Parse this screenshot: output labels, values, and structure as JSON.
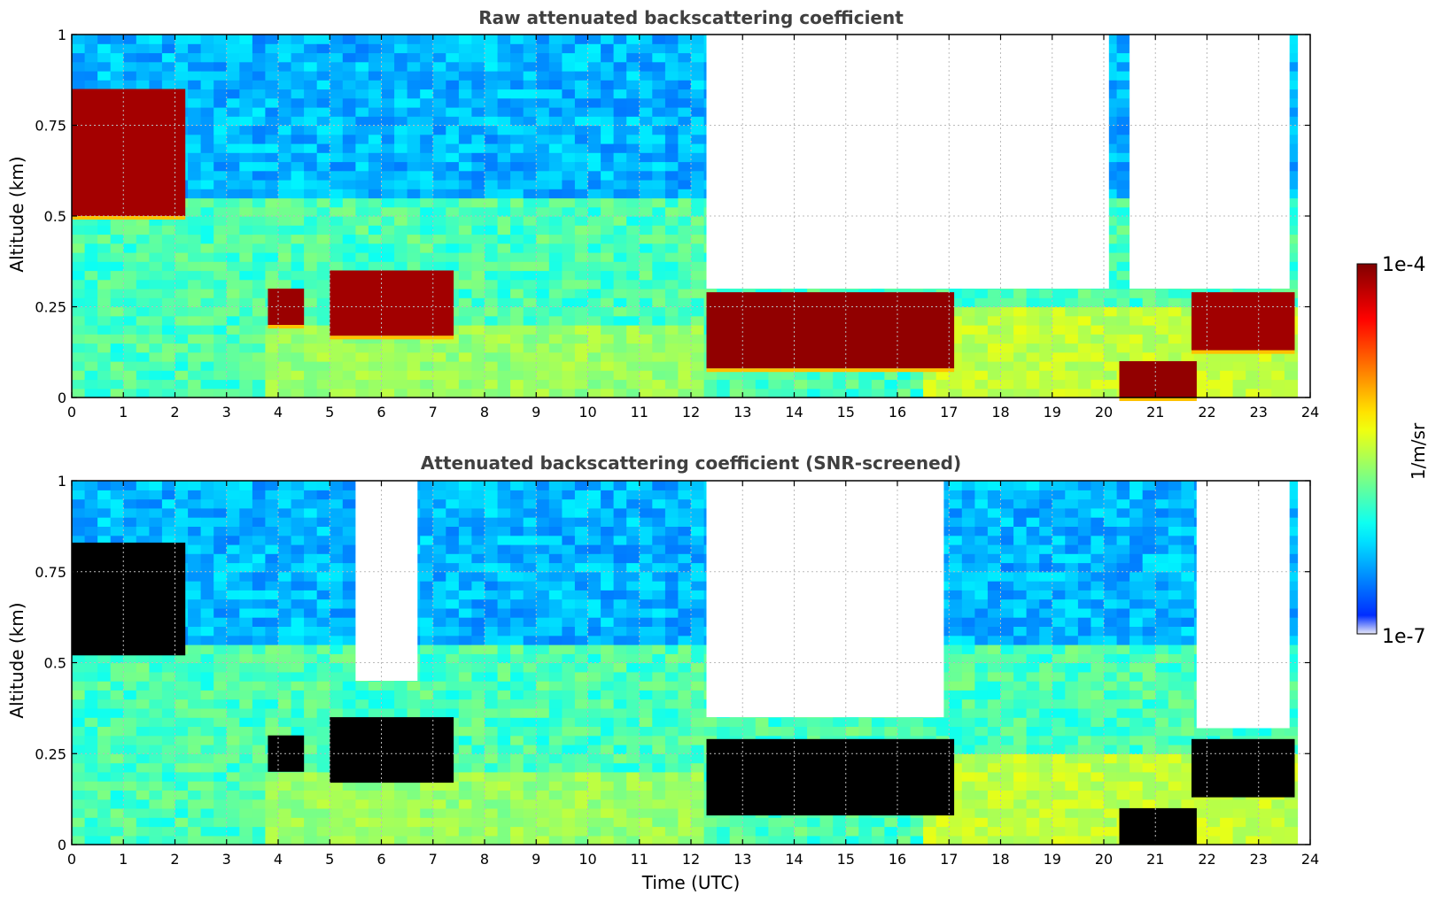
{
  "chart_data": [
    {
      "type": "heatmap",
      "title": "Raw attenuated backscattering coefficient",
      "xlabel": "",
      "ylabel": "Altitude (km)",
      "xlim": [
        0,
        24
      ],
      "ylim": [
        0,
        1
      ],
      "xticks": [
        "0",
        "1",
        "2",
        "3",
        "4",
        "5",
        "6",
        "7",
        "8",
        "9",
        "10",
        "11",
        "12",
        "13",
        "14",
        "15",
        "16",
        "17",
        "18",
        "19",
        "20",
        "21",
        "22",
        "23",
        "24"
      ],
      "yticks": [
        "0",
        "0.25",
        "0.5",
        "0.75",
        "1"
      ],
      "grid": true,
      "regions": [
        {
          "t0": 0.0,
          "t1": 2.2,
          "z0": 0.5,
          "z1": 0.85,
          "level": 1.0
        },
        {
          "t0": 3.8,
          "t1": 4.5,
          "z0": 0.2,
          "z1": 0.3,
          "level": 0.9
        },
        {
          "t0": 5.0,
          "t1": 7.4,
          "z0": 0.17,
          "z1": 0.35,
          "level": 0.95
        },
        {
          "t0": 12.3,
          "t1": 17.1,
          "z0": 0.08,
          "z1": 0.29,
          "level": 1.0
        },
        {
          "t0": 20.3,
          "t1": 21.8,
          "z0": 0.0,
          "z1": 0.1,
          "level": 1.0
        },
        {
          "t0": 21.7,
          "t1": 23.7,
          "z0": 0.13,
          "z1": 0.29,
          "level": 1.0
        },
        {
          "t0": 12.3,
          "t1": 20.1,
          "z0": 0.3,
          "z1": 1.0,
          "level": -1.0
        },
        {
          "t0": 20.5,
          "t1": 23.6,
          "z0": 0.3,
          "z1": 1.0,
          "level": -1.0
        }
      ]
    },
    {
      "type": "heatmap",
      "title": "Attenuated backscattering coefficient (SNR-screened)",
      "xlabel": "Time (UTC)",
      "ylabel": "Altitude (km)",
      "xlim": [
        0,
        24
      ],
      "ylim": [
        0,
        1
      ],
      "xticks": [
        "0",
        "1",
        "2",
        "3",
        "4",
        "5",
        "6",
        "7",
        "8",
        "9",
        "10",
        "11",
        "12",
        "13",
        "14",
        "15",
        "16",
        "17",
        "18",
        "19",
        "20",
        "21",
        "22",
        "23",
        "24"
      ],
      "yticks": [
        "0",
        "0.25",
        "0.5",
        "0.75",
        "1"
      ],
      "grid": true,
      "regions": [
        {
          "t0": 0.0,
          "t1": 2.2,
          "z0": 0.52,
          "z1": 0.83,
          "level": 1.1
        },
        {
          "t0": 3.8,
          "t1": 4.5,
          "z0": 0.2,
          "z1": 0.3,
          "level": 1.1
        },
        {
          "t0": 5.0,
          "t1": 7.4,
          "z0": 0.17,
          "z1": 0.35,
          "level": 1.1
        },
        {
          "t0": 12.3,
          "t1": 17.1,
          "z0": 0.08,
          "z1": 0.29,
          "level": 1.1
        },
        {
          "t0": 20.3,
          "t1": 21.8,
          "z0": 0.0,
          "z1": 0.1,
          "level": 1.1
        },
        {
          "t0": 21.7,
          "t1": 23.7,
          "z0": 0.13,
          "z1": 0.29,
          "level": 1.1
        },
        {
          "t0": 12.3,
          "t1": 16.9,
          "z0": 0.35,
          "z1": 1.0,
          "level": -1.0
        },
        {
          "t0": 5.5,
          "t1": 6.7,
          "z0": 0.45,
          "z1": 1.0,
          "level": -1.0
        },
        {
          "t0": 21.8,
          "t1": 23.6,
          "z0": 0.32,
          "z1": 1.0,
          "level": -1.0
        }
      ]
    }
  ],
  "colorbar": {
    "label": "1/m/sr",
    "max_label": "1e-4",
    "min_label": "1e-7",
    "scale": "log",
    "range": [
      1e-07,
      0.0001
    ],
    "colormap": "jet",
    "colors": [
      "#e8e8f8",
      "#0000ff",
      "#00a0ff",
      "#00ffff",
      "#80ff80",
      "#ffff00",
      "#ff8000",
      "#ff0000",
      "#800000"
    ]
  }
}
